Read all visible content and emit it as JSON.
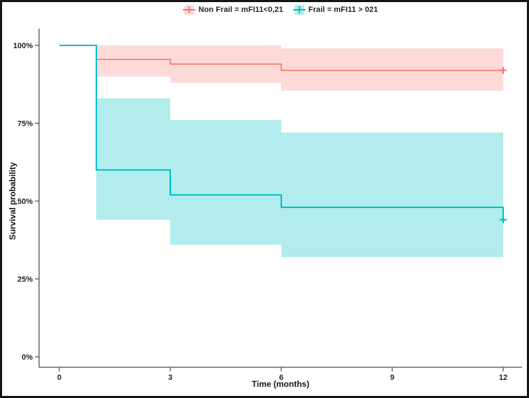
{
  "chart_data": {
    "type": "line",
    "subtype": "kaplan-meier-step-with-confidence-bands",
    "title": "",
    "xlabel": "Time (months)",
    "ylabel": "Survival probability",
    "legend_position": "top",
    "xlim": [
      0,
      12
    ],
    "ylim": [
      0,
      100
    ],
    "x_ticks": [
      0,
      3,
      6,
      9,
      12
    ],
    "y_ticks": [
      0,
      25,
      50,
      75,
      100
    ],
    "y_tick_suffix": "%",
    "grid": "off",
    "axis_color": "#4d4d4d",
    "series": [
      {
        "name": "Non Frail = mFI11<0,21",
        "line_color": "#F8766D",
        "band_fill": "rgba(248,118,109,0.27)",
        "steps": [
          [
            0,
            100
          ],
          [
            1,
            95.5
          ],
          [
            3,
            94
          ],
          [
            6,
            92
          ]
        ],
        "end_time": 12,
        "censor_at": [
          12,
          92
        ],
        "band": [
          {
            "t0": 1,
            "t1": 3,
            "hi": 100,
            "lo": 90
          },
          {
            "t0": 3,
            "t1": 6,
            "hi": 100,
            "lo": 88
          },
          {
            "t0": 6,
            "t1": 12,
            "hi": 99,
            "lo": 85.5
          }
        ]
      },
      {
        "name": "Frail = mFI11 > 021",
        "line_color": "#00BFC4",
        "band_fill": "rgba(0,191,196,0.30)",
        "steps": [
          [
            0,
            100
          ],
          [
            1,
            60
          ],
          [
            3,
            52
          ],
          [
            6,
            48
          ],
          [
            12,
            44
          ]
        ],
        "end_time": 12,
        "censor_at": [
          12,
          44
        ],
        "band": [
          {
            "t0": 1,
            "t1": 3,
            "hi": 83,
            "lo": 44
          },
          {
            "t0": 3,
            "t1": 6,
            "hi": 76,
            "lo": 36
          },
          {
            "t0": 6,
            "t1": 12,
            "hi": 72,
            "lo": 32
          }
        ]
      }
    ]
  }
}
